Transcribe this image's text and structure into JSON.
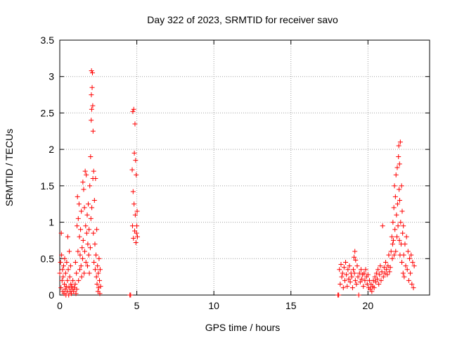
{
  "chart_data": {
    "type": "scatter",
    "title": "Day 322 of 2023, SRMTID for receiver savo",
    "xlabel": "GPS time / hours",
    "ylabel": "SRMTID / TECUs",
    "xlim": [
      0,
      24
    ],
    "ylim": [
      0,
      3.5
    ],
    "x_ticks": [
      0,
      5,
      10,
      15,
      20
    ],
    "x_tick_labels": [
      "0",
      "5",
      "10",
      "15",
      "20"
    ],
    "y_ticks": [
      0,
      0.5,
      1,
      1.5,
      2,
      2.5,
      3,
      3.5
    ],
    "y_tick_labels": [
      "0",
      "0.5",
      "1",
      "1.5",
      "2",
      "2.5",
      "3",
      "3.5"
    ],
    "grid": true,
    "marker": "plus",
    "colors": {
      "series": "#ff0000",
      "grid": "#a0a0a0",
      "axis": "#000000"
    },
    "series": [
      {
        "name": "SRMTID",
        "points": [
          [
            0.0,
            0.3
          ],
          [
            0.05,
            0.45
          ],
          [
            0.08,
            0.1
          ],
          [
            0.1,
            0.85
          ],
          [
            0.12,
            0.55
          ],
          [
            0.15,
            0.2
          ],
          [
            0.18,
            0.35
          ],
          [
            0.2,
            0.05
          ],
          [
            0.22,
            0.25
          ],
          [
            0.25,
            0.4
          ],
          [
            0.28,
            0.02
          ],
          [
            0.3,
            0.15
          ],
          [
            0.32,
            0.5
          ],
          [
            0.35,
            0.08
          ],
          [
            0.38,
            0.3
          ],
          [
            0.4,
            0.0
          ],
          [
            0.42,
            0.12
          ],
          [
            0.45,
            0.45
          ],
          [
            0.48,
            0.05
          ],
          [
            0.5,
            0.2
          ],
          [
            0.52,
            0.8
          ],
          [
            0.55,
            0.35
          ],
          [
            0.58,
            0.0
          ],
          [
            0.6,
            0.1
          ],
          [
            0.62,
            0.6
          ],
          [
            0.65,
            0.25
          ],
          [
            0.68,
            0.05
          ],
          [
            0.7,
            0.4
          ],
          [
            0.72,
            0.15
          ],
          [
            0.75,
            0.02
          ],
          [
            0.78,
            0.12
          ],
          [
            0.8,
            0.08
          ],
          [
            0.85,
            0.2
          ],
          [
            0.9,
            0.05
          ],
          [
            0.95,
            0.1
          ],
          [
            1.0,
            0.15
          ],
          [
            1.02,
            0.45
          ],
          [
            1.05,
            0.02
          ],
          [
            1.08,
            0.3
          ],
          [
            1.1,
            0.08
          ],
          [
            1.12,
            0.95
          ],
          [
            1.15,
            1.35
          ],
          [
            1.18,
            0.6
          ],
          [
            1.2,
            1.05
          ],
          [
            1.22,
            0.2
          ],
          [
            1.25,
            1.25
          ],
          [
            1.28,
            0.8
          ],
          [
            1.3,
            0.35
          ],
          [
            1.32,
            0.55
          ],
          [
            1.35,
            0.9
          ],
          [
            1.38,
            0.4
          ],
          [
            1.4,
            1.15
          ],
          [
            1.42,
            0.25
          ],
          [
            1.45,
            0.65
          ],
          [
            1.48,
            0.5
          ],
          [
            1.5,
            1.55
          ],
          [
            1.52,
            0.75
          ],
          [
            1.55,
            1.45
          ],
          [
            1.58,
            0.3
          ],
          [
            1.6,
            1.2
          ],
          [
            1.62,
            0.6
          ],
          [
            1.65,
            1.7
          ],
          [
            1.68,
            0.95
          ],
          [
            1.7,
            0.45
          ],
          [
            1.72,
            1.65
          ],
          [
            1.75,
            0.85
          ],
          [
            1.78,
            1.1
          ],
          [
            1.8,
            0.4
          ],
          [
            1.82,
            0.7
          ],
          [
            1.85,
            1.25
          ],
          [
            1.88,
            0.55
          ],
          [
            1.9,
            0.9
          ],
          [
            1.92,
            0.3
          ],
          [
            1.95,
            1.5
          ],
          [
            1.98,
            0.65
          ],
          [
            2.0,
            1.9
          ],
          [
            2.02,
            1.05
          ],
          [
            2.04,
            2.4
          ],
          [
            2.05,
            2.75
          ],
          [
            2.06,
            3.08
          ],
          [
            2.07,
            2.55
          ],
          [
            2.08,
            1.2
          ],
          [
            2.1,
            2.85
          ],
          [
            2.12,
            3.05
          ],
          [
            2.14,
            2.6
          ],
          [
            2.15,
            1.6
          ],
          [
            2.16,
            2.25
          ],
          [
            2.18,
            0.85
          ],
          [
            2.2,
            1.7
          ],
          [
            2.22,
            0.45
          ],
          [
            2.25,
            1.3
          ],
          [
            2.28,
            0.7
          ],
          [
            2.3,
            0.35
          ],
          [
            2.32,
            1.6
          ],
          [
            2.35,
            0.55
          ],
          [
            2.38,
            0.25
          ],
          [
            2.4,
            0.9
          ],
          [
            2.42,
            0.15
          ],
          [
            2.45,
            0.4
          ],
          [
            2.48,
            0.05
          ],
          [
            2.5,
            0.3
          ],
          [
            2.52,
            0.1
          ],
          [
            2.55,
            0.5
          ],
          [
            2.58,
            0.2
          ],
          [
            2.6,
            0.02
          ],
          [
            2.62,
            0.35
          ],
          [
            2.65,
            0.12
          ],
          [
            4.55,
            0.0
          ],
          [
            4.6,
            0.0
          ],
          [
            4.7,
            1.72
          ],
          [
            4.72,
            0.95
          ],
          [
            4.74,
            2.52
          ],
          [
            4.76,
            1.42
          ],
          [
            4.78,
            0.78
          ],
          [
            4.8,
            2.55
          ],
          [
            4.82,
            1.25
          ],
          [
            4.84,
            1.95
          ],
          [
            4.86,
            0.88
          ],
          [
            4.88,
            2.35
          ],
          [
            4.9,
            1.1
          ],
          [
            4.92,
            1.85
          ],
          [
            4.94,
            0.72
          ],
          [
            4.96,
            1.65
          ],
          [
            4.98,
            0.85
          ],
          [
            5.0,
            0.95
          ],
          [
            5.02,
            1.15
          ],
          [
            5.04,
            0.8
          ],
          [
            18.05,
            0.0
          ],
          [
            18.1,
            0.0
          ],
          [
            18.15,
            0.35
          ],
          [
            18.2,
            0.15
          ],
          [
            18.25,
            0.42
          ],
          [
            18.3,
            0.25
          ],
          [
            18.35,
            0.3
          ],
          [
            18.4,
            0.1
          ],
          [
            18.45,
            0.38
          ],
          [
            18.5,
            0.2
          ],
          [
            18.55,
            0.45
          ],
          [
            18.6,
            0.28
          ],
          [
            18.65,
            0.12
          ],
          [
            18.7,
            0.35
          ],
          [
            18.75,
            0.22
          ],
          [
            18.8,
            0.4
          ],
          [
            18.85,
            0.18
          ],
          [
            18.9,
            0.3
          ],
          [
            18.95,
            0.25
          ],
          [
            19.0,
            0.1
          ],
          [
            19.05,
            0.35
          ],
          [
            19.1,
            0.52
          ],
          [
            19.12,
            0.3
          ],
          [
            19.15,
            0.6
          ],
          [
            19.18,
            0.2
          ],
          [
            19.2,
            0.48
          ],
          [
            19.25,
            0.15
          ],
          [
            19.3,
            0.4
          ],
          [
            19.35,
            0.25
          ],
          [
            19.4,
            0.0
          ],
          [
            19.45,
            0.3
          ],
          [
            19.5,
            0.18
          ],
          [
            19.55,
            0.35
          ],
          [
            19.6,
            0.22
          ],
          [
            19.65,
            0.28
          ],
          [
            19.7,
            0.12
          ],
          [
            19.75,
            0.3
          ],
          [
            19.8,
            0.2
          ],
          [
            19.85,
            0.35
          ],
          [
            19.9,
            0.25
          ],
          [
            19.95,
            0.15
          ],
          [
            20.0,
            0.28
          ],
          [
            20.05,
            0.1
          ],
          [
            20.1,
            0.2
          ],
          [
            20.15,
            0.08
          ],
          [
            20.2,
            0.15
          ],
          [
            20.25,
            0.05
          ],
          [
            20.3,
            0.12
          ],
          [
            20.35,
            0.2
          ],
          [
            20.4,
            0.1
          ],
          [
            20.45,
            0.25
          ],
          [
            20.5,
            0.18
          ],
          [
            20.55,
            0.3
          ],
          [
            20.6,
            0.22
          ],
          [
            20.65,
            0.35
          ],
          [
            20.7,
            0.15
          ],
          [
            20.75,
            0.28
          ],
          [
            20.8,
            0.4
          ],
          [
            20.85,
            0.2
          ],
          [
            20.9,
            0.32
          ],
          [
            20.95,
            0.95
          ],
          [
            21.0,
            0.25
          ],
          [
            21.05,
            0.38
          ],
          [
            21.1,
            0.3
          ],
          [
            21.15,
            0.45
          ],
          [
            21.2,
            0.35
          ],
          [
            21.25,
            0.28
          ],
          [
            21.3,
            0.4
          ],
          [
            21.35,
            0.55
          ],
          [
            21.4,
            0.32
          ],
          [
            21.45,
            0.38
          ],
          [
            21.5,
            0.6
          ],
          [
            21.55,
            0.8
          ],
          [
            21.58,
            0.5
          ],
          [
            21.6,
            0.7
          ],
          [
            21.62,
            1.0
          ],
          [
            21.65,
            0.75
          ],
          [
            21.68,
            1.2
          ],
          [
            21.7,
            0.55
          ],
          [
            21.72,
            1.5
          ],
          [
            21.75,
            0.9
          ],
          [
            21.78,
            1.35
          ],
          [
            21.8,
            0.6
          ],
          [
            21.82,
            1.65
          ],
          [
            21.85,
            1.1
          ],
          [
            21.88,
            0.8
          ],
          [
            21.9,
            1.75
          ],
          [
            21.92,
            1.25
          ],
          [
            21.95,
            0.95
          ],
          [
            21.98,
            1.9
          ],
          [
            22.0,
            2.05
          ],
          [
            22.02,
            1.45
          ],
          [
            22.04,
            0.75
          ],
          [
            22.05,
            1.8
          ],
          [
            22.06,
            1.3
          ],
          [
            22.08,
            0.55
          ],
          [
            22.1,
            2.1
          ],
          [
            22.12,
            1.0
          ],
          [
            22.15,
            0.7
          ],
          [
            22.18,
            1.5
          ],
          [
            22.2,
            0.45
          ],
          [
            22.22,
            1.15
          ],
          [
            22.25,
            0.85
          ],
          [
            22.28,
            0.3
          ],
          [
            22.3,
            0.95
          ],
          [
            22.32,
            0.55
          ],
          [
            22.35,
            0.25
          ],
          [
            22.4,
            0.7
          ],
          [
            22.45,
            0.4
          ],
          [
            22.5,
            0.8
          ],
          [
            22.55,
            0.35
          ],
          [
            22.6,
            0.6
          ],
          [
            22.65,
            0.2
          ],
          [
            22.7,
            0.5
          ],
          [
            22.75,
            0.3
          ],
          [
            22.8,
            0.55
          ],
          [
            22.85,
            0.15
          ],
          [
            22.9,
            0.45
          ],
          [
            22.95,
            0.1
          ],
          [
            23.0,
            0.4
          ]
        ]
      }
    ]
  }
}
